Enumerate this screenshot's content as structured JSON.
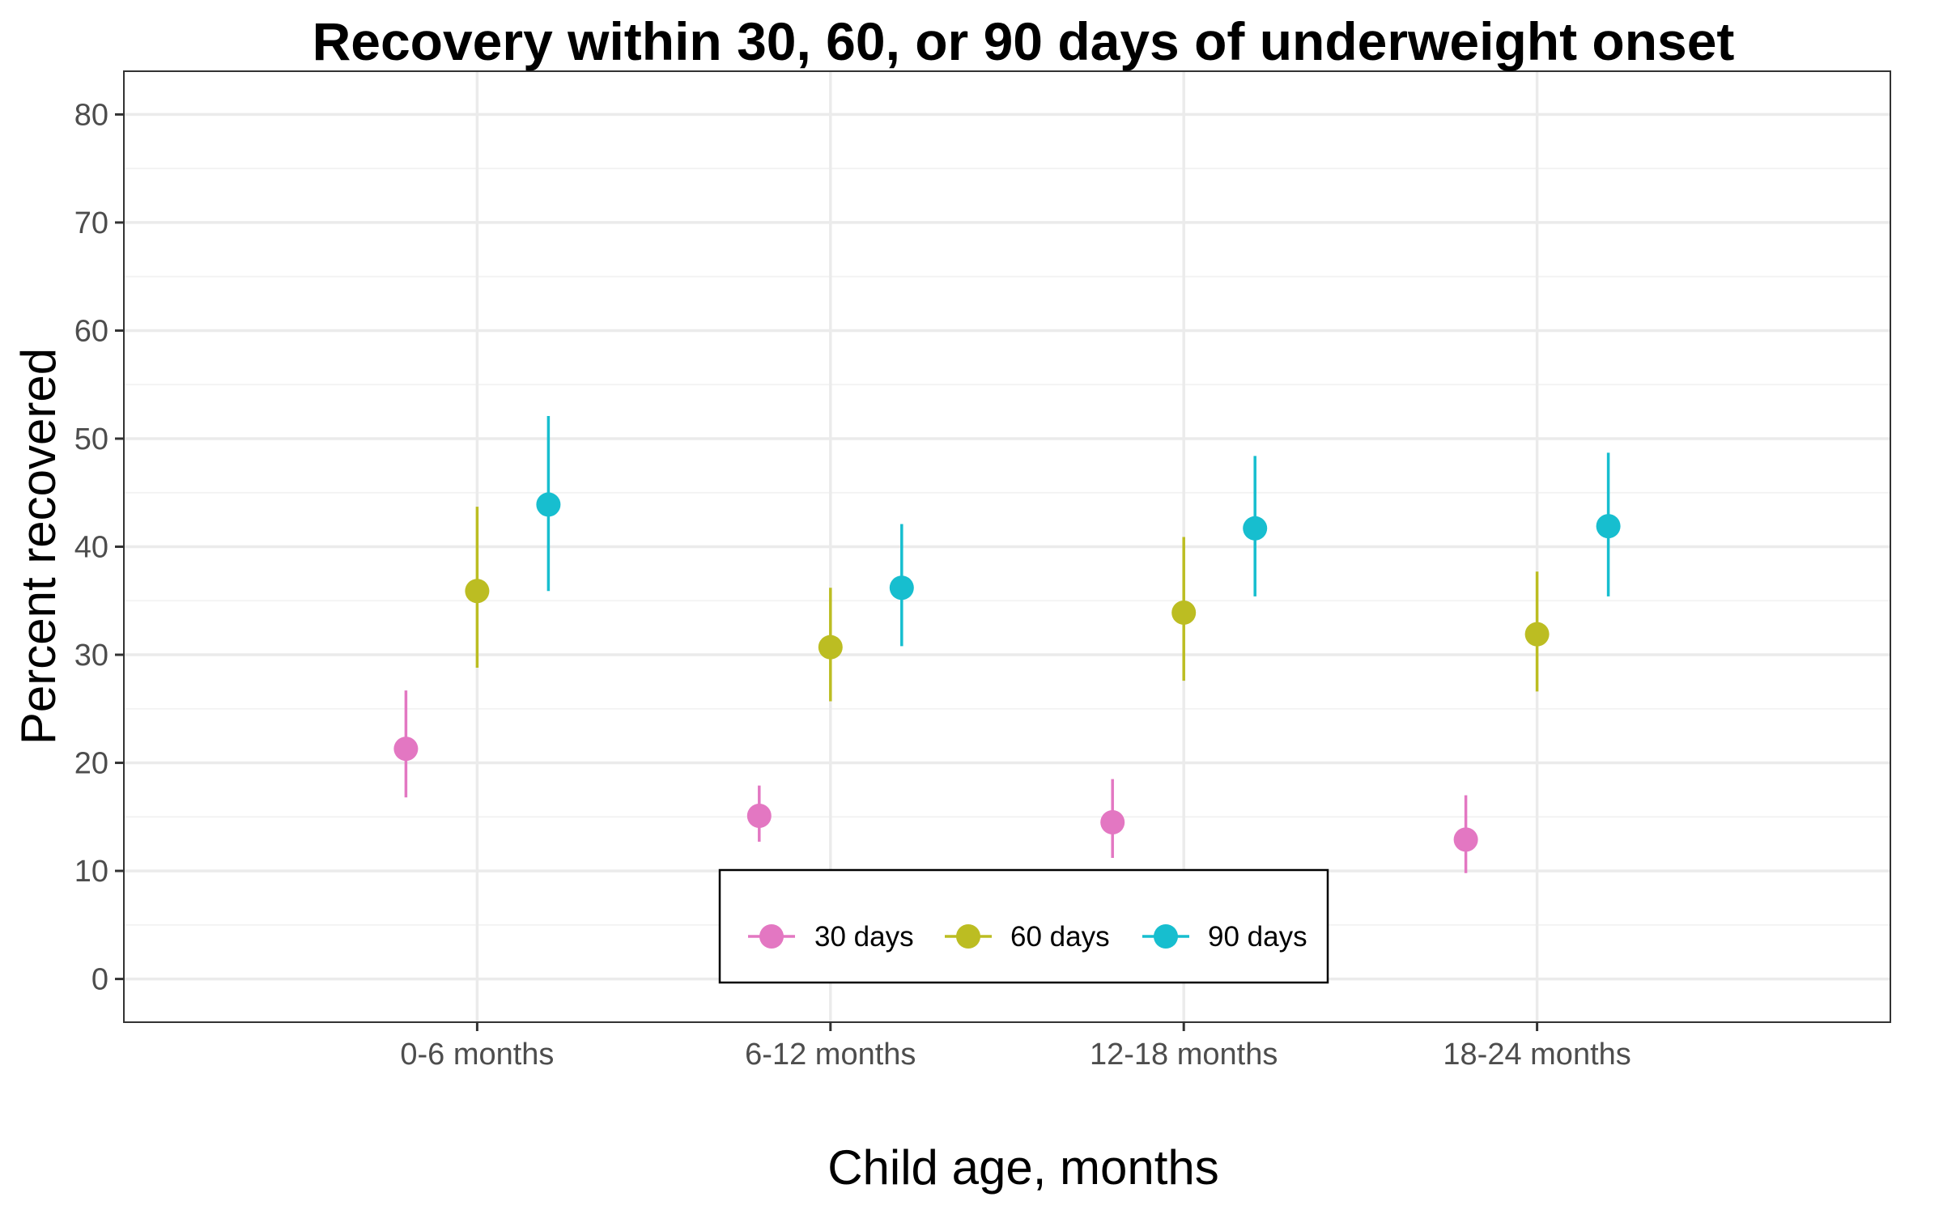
{
  "chart_data": {
    "type": "scatter",
    "title": "Recovery within 30, 60, or 90 days of underweight onset",
    "xlabel": "Child age, months",
    "ylabel": "Percent recovered",
    "categories": [
      "0-6 months",
      "6-12 months",
      "12-18 months",
      "18-24 months"
    ],
    "ylim": [
      -4,
      84
    ],
    "yticks": [
      0,
      10,
      20,
      30,
      40,
      50,
      60,
      70,
      80
    ],
    "grid": true,
    "legend_position": "bottom-center",
    "series": [
      {
        "name": "30 days",
        "color": "#e377c2",
        "values": [
          21.3,
          15.1,
          14.5,
          12.9
        ],
        "lower": [
          16.8,
          12.7,
          11.2,
          9.8
        ],
        "upper": [
          26.7,
          17.9,
          18.5,
          17.0
        ]
      },
      {
        "name": "60 days",
        "color": "#bcbd22",
        "values": [
          35.9,
          30.7,
          33.9,
          31.9
        ],
        "lower": [
          28.8,
          25.7,
          27.6,
          26.6
        ],
        "upper": [
          43.7,
          36.2,
          40.9,
          37.7
        ]
      },
      {
        "name": "90 days",
        "color": "#17becf",
        "values": [
          43.9,
          36.2,
          41.7,
          41.9
        ],
        "lower": [
          35.9,
          30.8,
          35.4,
          35.4
        ],
        "upper": [
          52.1,
          42.1,
          48.4,
          48.7
        ]
      }
    ]
  }
}
